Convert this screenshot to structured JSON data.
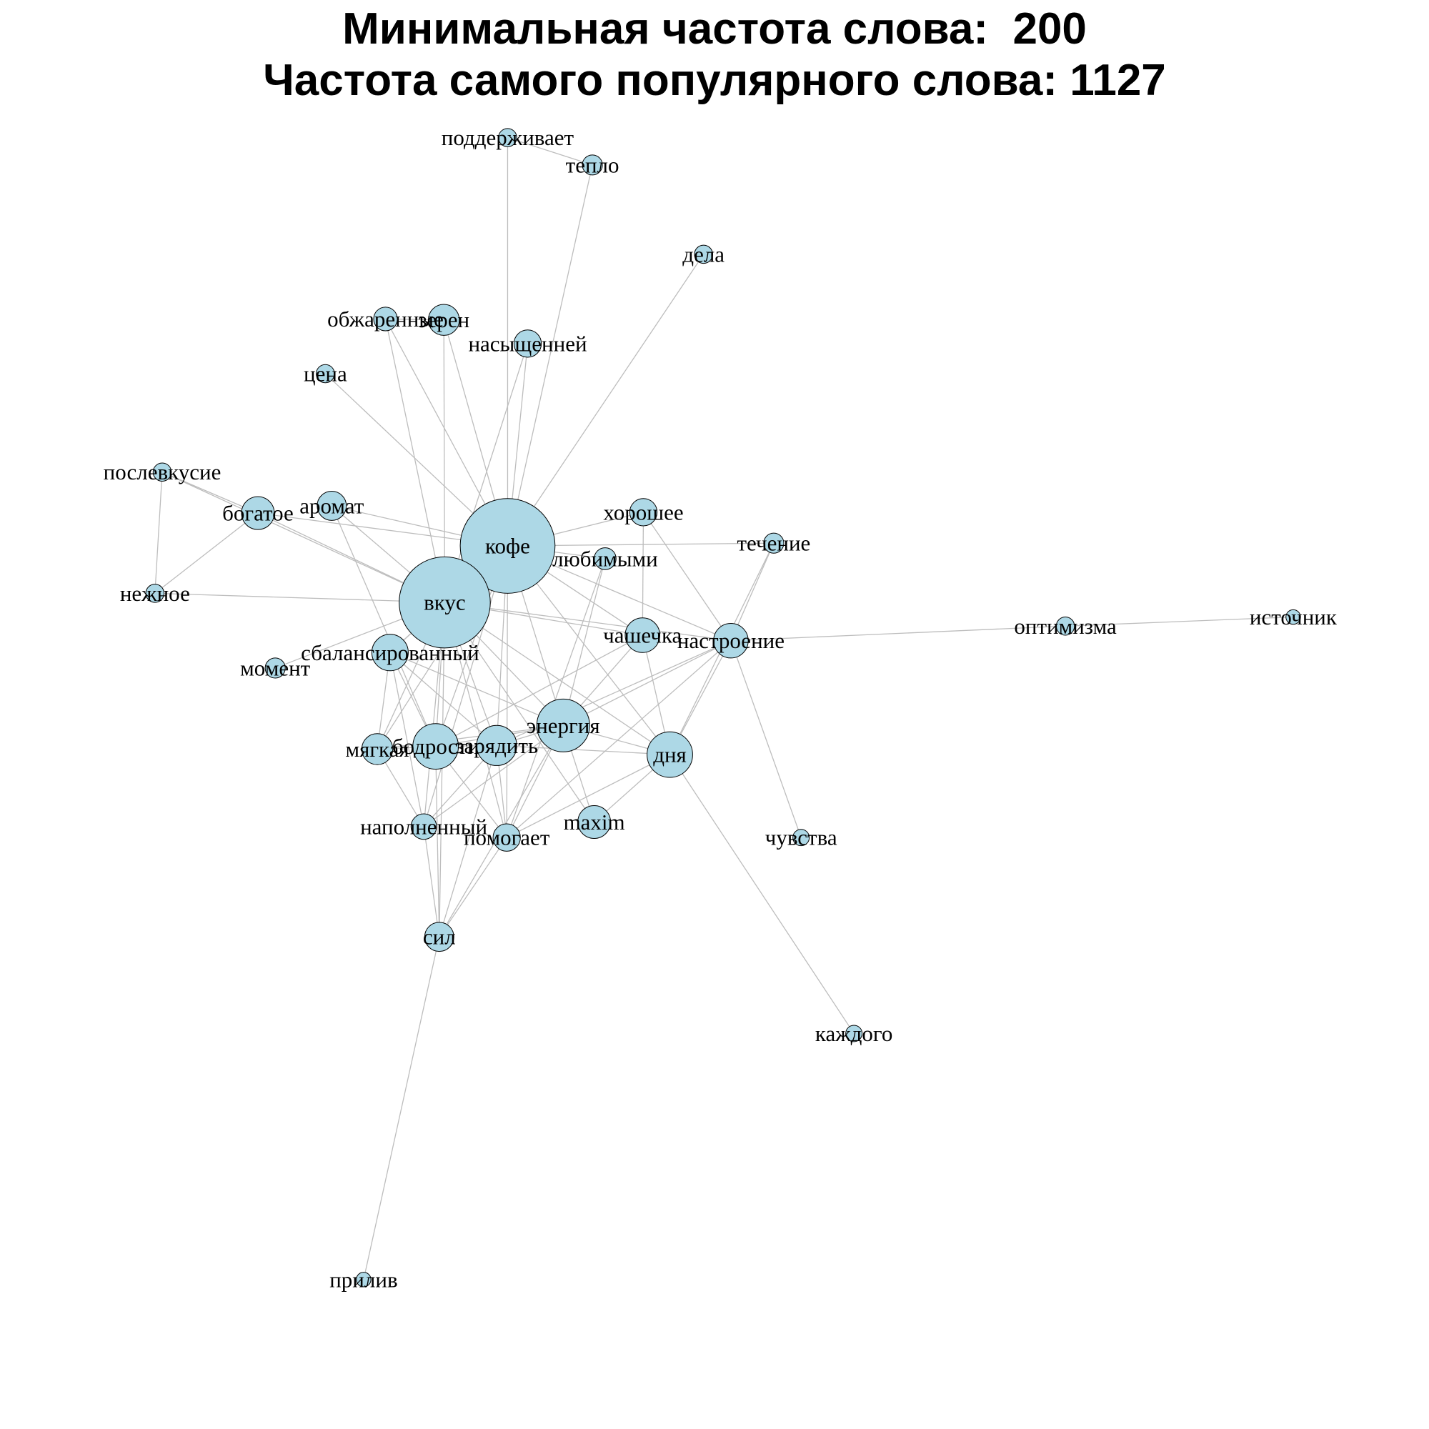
{
  "title": {
    "line1": "Минимальная частота слова:  200",
    "line2": "Частота самого популярного слова: 1127"
  },
  "colors": {
    "node_fill": "#add8e6",
    "node_stroke": "#000000",
    "edge": "#bdbdbd",
    "background": "#ffffff"
  },
  "nodes": [
    {
      "id": "кофе",
      "label": "кофе"
    },
    {
      "id": "вкус",
      "label": "вкус"
    },
    {
      "id": "поддерживает",
      "label": "поддерживает"
    },
    {
      "id": "тепло",
      "label": "тепло"
    },
    {
      "id": "дела",
      "label": "дела"
    },
    {
      "id": "обжаренные",
      "label": "обжаренные"
    },
    {
      "id": "зерен",
      "label": "зерен"
    },
    {
      "id": "насыщенней",
      "label": "насыщенней"
    },
    {
      "id": "цена",
      "label": "цена"
    },
    {
      "id": "послевкусие",
      "label": "послевкусие"
    },
    {
      "id": "богатое",
      "label": "богатое"
    },
    {
      "id": "аромат",
      "label": "аромат"
    },
    {
      "id": "хорошее",
      "label": "хорошее"
    },
    {
      "id": "течение",
      "label": "течение"
    },
    {
      "id": "любимыми",
      "label": "любимыми"
    },
    {
      "id": "нежное",
      "label": "нежное"
    },
    {
      "id": "оптимизма",
      "label": "оптимизма"
    },
    {
      "id": "источник",
      "label": "источник"
    },
    {
      "id": "чашечка",
      "label": "чашечка"
    },
    {
      "id": "настроение",
      "label": "настроение"
    },
    {
      "id": "сбалансированный",
      "label": "сбалансированный"
    },
    {
      "id": "момент",
      "label": "момент"
    },
    {
      "id": "энергия",
      "label": "энергия"
    },
    {
      "id": "мягкая",
      "label": "мягкая"
    },
    {
      "id": "бодрости",
      "label": "бодрости"
    },
    {
      "id": "зарядить",
      "label": "зарядить"
    },
    {
      "id": "дня",
      "label": "дня"
    },
    {
      "id": "maxim",
      "label": "maxim"
    },
    {
      "id": "наполненный",
      "label": "наполненный"
    },
    {
      "id": "помогает",
      "label": "помогает"
    },
    {
      "id": "чувства",
      "label": "чувства"
    },
    {
      "id": "сил",
      "label": "сил"
    },
    {
      "id": "каждого",
      "label": "каждого"
    },
    {
      "id": "прилив",
      "label": "прилив"
    }
  ],
  "edges": [
    [
      "поддерживает",
      "тепло"
    ],
    [
      "поддерживает",
      "кофе"
    ],
    [
      "тепло",
      "кофе"
    ],
    [
      "дела",
      "кофе"
    ],
    [
      "обжаренные",
      "вкус"
    ],
    [
      "обжаренные",
      "кофе"
    ],
    [
      "обжаренные",
      "зерен"
    ],
    [
      "зерен",
      "вкус"
    ],
    [
      "зерен",
      "кофе"
    ],
    [
      "насыщенней",
      "вкус"
    ],
    [
      "насыщенней",
      "кофе"
    ],
    [
      "цена",
      "кофе"
    ],
    [
      "послевкусие",
      "богатое"
    ],
    [
      "послевкусие",
      "нежное"
    ],
    [
      "послевкусие",
      "вкус"
    ],
    [
      "богатое",
      "вкус"
    ],
    [
      "богатое",
      "кофе"
    ],
    [
      "богатое",
      "нежное"
    ],
    [
      "аромат",
      "кофе"
    ],
    [
      "аромат",
      "вкус"
    ],
    [
      "аромат",
      "бодрости"
    ],
    [
      "нежное",
      "вкус"
    ],
    [
      "кофе",
      "вкус"
    ],
    [
      "кофе",
      "хорошее"
    ],
    [
      "кофе",
      "течение"
    ],
    [
      "кофе",
      "любимыми"
    ],
    [
      "кофе",
      "чашечка"
    ],
    [
      "кофе",
      "настроение"
    ],
    [
      "кофе",
      "сбалансированный"
    ],
    [
      "кофе",
      "энергия"
    ],
    [
      "кофе",
      "бодрости"
    ],
    [
      "кофе",
      "зарядить"
    ],
    [
      "кофе",
      "дня"
    ],
    [
      "кофе",
      "помогает"
    ],
    [
      "кофе",
      "наполненный"
    ],
    [
      "кофе",
      "мягкая"
    ],
    [
      "вкус",
      "сбалансированный"
    ],
    [
      "вкус",
      "мягкая"
    ],
    [
      "вкус",
      "бодрости"
    ],
    [
      "вкус",
      "зарядить"
    ],
    [
      "вкус",
      "энергия"
    ],
    [
      "вкус",
      "наполненный"
    ],
    [
      "вкус",
      "помогает"
    ],
    [
      "вкус",
      "сил"
    ],
    [
      "вкус",
      "дня"
    ],
    [
      "вкус",
      "настроение"
    ],
    [
      "вкус",
      "чашечка"
    ],
    [
      "вкус",
      "maxim"
    ],
    [
      "вкус",
      "момент"
    ],
    [
      "хорошее",
      "настроение"
    ],
    [
      "хорошее",
      "чашечка"
    ],
    [
      "течение",
      "настроение"
    ],
    [
      "течение",
      "дня"
    ],
    [
      "любимыми",
      "энергия"
    ],
    [
      "любимыми",
      "помогает"
    ],
    [
      "оптимизма",
      "настроение"
    ],
    [
      "оптимизма",
      "источник"
    ],
    [
      "чашечка",
      "энергия"
    ],
    [
      "чашечка",
      "дня"
    ],
    [
      "чашечка",
      "бодрости"
    ],
    [
      "настроение",
      "энергия"
    ],
    [
      "настроение",
      "дня"
    ],
    [
      "настроение",
      "чувства"
    ],
    [
      "настроение",
      "зарядить"
    ],
    [
      "настроение",
      "помогает"
    ],
    [
      "сбалансированный",
      "мягкая"
    ],
    [
      "сбалансированный",
      "бодрости"
    ],
    [
      "сбалансированный",
      "наполненный"
    ],
    [
      "сбалансированный",
      "зарядить"
    ],
    [
      "сбалансированный",
      "энергия"
    ],
    [
      "энергия",
      "бодрости"
    ],
    [
      "энергия",
      "зарядить"
    ],
    [
      "энергия",
      "дня"
    ],
    [
      "энергия",
      "maxim"
    ],
    [
      "энергия",
      "помогает"
    ],
    [
      "энергия",
      "наполненный"
    ],
    [
      "энергия",
      "сил"
    ],
    [
      "энергия",
      "мягкая"
    ],
    [
      "мягкая",
      "бодрости"
    ],
    [
      "мягкая",
      "наполненный"
    ],
    [
      "бодрости",
      "зарядить"
    ],
    [
      "бодрости",
      "сил"
    ],
    [
      "бодрости",
      "помогает"
    ],
    [
      "зарядить",
      "сил"
    ],
    [
      "зарядить",
      "наполненный"
    ],
    [
      "зарядить",
      "дня"
    ],
    [
      "зарядить",
      "помогает"
    ],
    [
      "дня",
      "maxim"
    ],
    [
      "дня",
      "каждого"
    ],
    [
      "дня",
      "помогает"
    ],
    [
      "помогает",
      "сил"
    ],
    [
      "наполненный",
      "сил"
    ],
    [
      "сил",
      "прилив"
    ]
  ]
}
